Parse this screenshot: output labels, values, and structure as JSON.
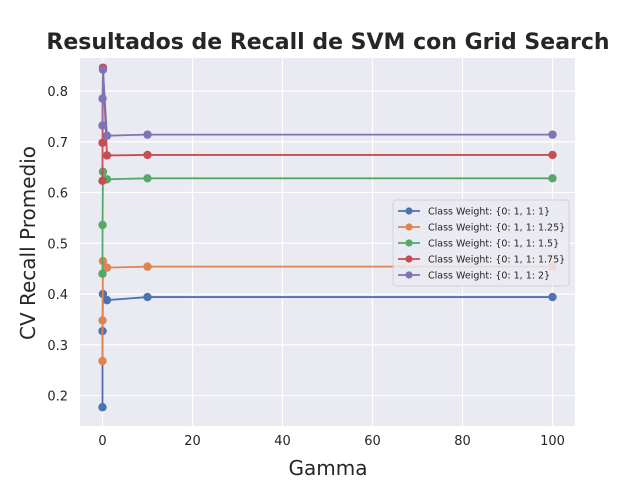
{
  "chart_data": {
    "type": "line",
    "title": "Resultados de Recall de SVM con Grid Search",
    "xlabel": "Gamma",
    "ylabel": "CV Recall Promedio",
    "xlim": [
      -5,
      105
    ],
    "ylim": [
      0.14,
      0.865
    ],
    "x": [
      0.001,
      0.01,
      0.1,
      1,
      10,
      100
    ],
    "xticks": [
      0,
      20,
      40,
      60,
      80,
      100
    ],
    "yticks": [
      0.2,
      0.3,
      0.4,
      0.5,
      0.6,
      0.7,
      0.8
    ],
    "grid": true,
    "legend_position": "center-right",
    "series": [
      {
        "name": "Class Weight: {0: 1, 1: 1}",
        "color": "#4c72b0",
        "values": [
          0.177,
          0.327,
          0.4,
          0.388,
          0.394,
          0.394
        ]
      },
      {
        "name": "Class Weight: {0: 1, 1: 1.25}",
        "color": "#dd8452",
        "values": [
          0.268,
          0.348,
          0.465,
          0.452,
          0.454,
          0.454
        ]
      },
      {
        "name": "Class Weight: {0: 1, 1: 1.5}",
        "color": "#55a868",
        "values": [
          0.44,
          0.536,
          0.641,
          0.626,
          0.628,
          0.628
        ]
      },
      {
        "name": "Class Weight: {0: 1, 1: 1.75}",
        "color": "#c44e52",
        "values": [
          0.623,
          0.698,
          0.846,
          0.673,
          0.674,
          0.674
        ]
      },
      {
        "name": "Class Weight: {0: 1, 1: 2}",
        "color": "#8172b3",
        "values": [
          0.732,
          0.785,
          0.842,
          0.712,
          0.714,
          0.714
        ]
      }
    ]
  }
}
